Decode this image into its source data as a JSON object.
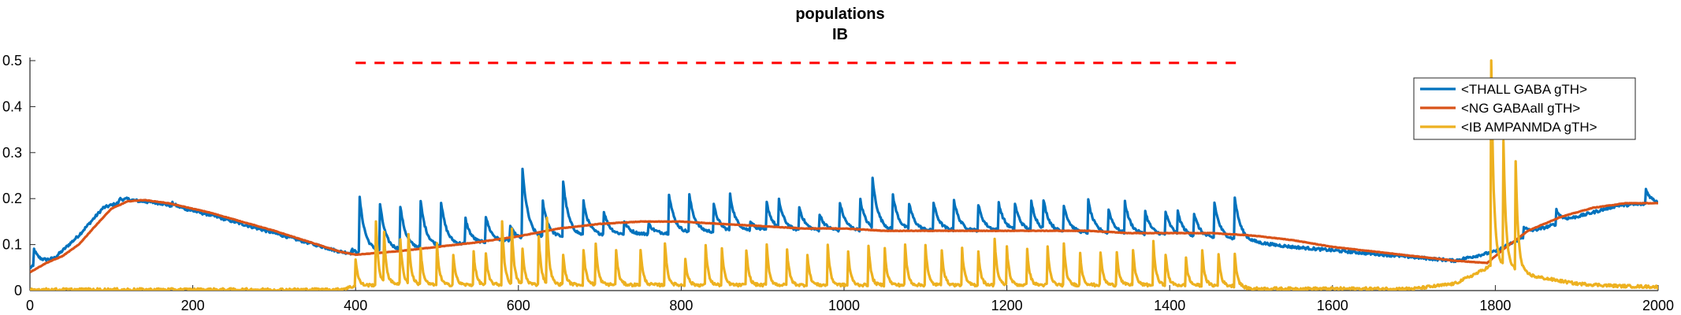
{
  "chart_data": {
    "type": "line",
    "title": [
      "populations",
      "IB"
    ],
    "xlabel": "",
    "ylabel": "",
    "xlim": [
      0,
      2000
    ],
    "ylim": [
      0,
      0.5
    ],
    "xticks": [
      0,
      200,
      400,
      600,
      800,
      1000,
      1200,
      1400,
      1600,
      1800,
      2000
    ],
    "yticks": [
      0,
      0.1,
      0.2,
      0.3,
      0.4,
      0.5
    ],
    "ytick_labels": [
      "0",
      "0.1",
      "0.2",
      "0.3",
      "0.4",
      "0.5"
    ],
    "grid": false,
    "legend_position": "top-right",
    "reference_line": {
      "style": "dashed",
      "color": "#ff0000",
      "y": 0.495,
      "x_start": 400,
      "x_end": 1490
    },
    "series": [
      {
        "name": "<THALL GABA gTH>",
        "color": "#0072bd",
        "baseline": [
          [
            0,
            0.05
          ],
          [
            30,
            0.07
          ],
          [
            60,
            0.12
          ],
          [
            90,
            0.18
          ],
          [
            120,
            0.197
          ],
          [
            160,
            0.19
          ],
          [
            220,
            0.165
          ],
          [
            300,
            0.125
          ],
          [
            380,
            0.085
          ],
          [
            400,
            0.08
          ],
          [
            500,
            0.095
          ],
          [
            600,
            0.11
          ],
          [
            700,
            0.12
          ],
          [
            800,
            0.125
          ],
          [
            900,
            0.13
          ],
          [
            1000,
            0.13
          ],
          [
            1100,
            0.13
          ],
          [
            1200,
            0.13
          ],
          [
            1300,
            0.125
          ],
          [
            1400,
            0.12
          ],
          [
            1480,
            0.11
          ],
          [
            1550,
            0.095
          ],
          [
            1650,
            0.08
          ],
          [
            1750,
            0.065
          ],
          [
            1800,
            0.085
          ],
          [
            1850,
            0.13
          ],
          [
            1900,
            0.16
          ],
          [
            1950,
            0.185
          ],
          [
            2000,
            0.19
          ]
        ],
        "spikes": [
          [
            5,
            0.09
          ],
          [
            55,
            0.1
          ],
          [
            110,
            0.2
          ],
          [
            175,
            0.19
          ],
          [
            215,
            0.16
          ],
          [
            275,
            0.135
          ],
          [
            325,
            0.105
          ],
          [
            395,
            0.09
          ],
          [
            405,
            0.2
          ],
          [
            430,
            0.185
          ],
          [
            455,
            0.18
          ],
          [
            480,
            0.19
          ],
          [
            505,
            0.19
          ],
          [
            535,
            0.155
          ],
          [
            560,
            0.16
          ],
          [
            590,
            0.14
          ],
          [
            605,
            0.26
          ],
          [
            630,
            0.19
          ],
          [
            655,
            0.235
          ],
          [
            680,
            0.19
          ],
          [
            705,
            0.17
          ],
          [
            730,
            0.15
          ],
          [
            760,
            0.145
          ],
          [
            785,
            0.21
          ],
          [
            810,
            0.205
          ],
          [
            840,
            0.185
          ],
          [
            860,
            0.205
          ],
          [
            885,
            0.15
          ],
          [
            905,
            0.19
          ],
          [
            920,
            0.19
          ],
          [
            945,
            0.18
          ],
          [
            970,
            0.165
          ],
          [
            995,
            0.19
          ],
          [
            1020,
            0.195
          ],
          [
            1035,
            0.235
          ],
          [
            1060,
            0.205
          ],
          [
            1080,
            0.185
          ],
          [
            1110,
            0.19
          ],
          [
            1135,
            0.195
          ],
          [
            1165,
            0.185
          ],
          [
            1190,
            0.19
          ],
          [
            1210,
            0.185
          ],
          [
            1230,
            0.19
          ],
          [
            1245,
            0.19
          ],
          [
            1270,
            0.185
          ],
          [
            1300,
            0.195
          ],
          [
            1325,
            0.175
          ],
          [
            1345,
            0.19
          ],
          [
            1370,
            0.17
          ],
          [
            1395,
            0.17
          ],
          [
            1410,
            0.165
          ],
          [
            1430,
            0.165
          ],
          [
            1455,
            0.19
          ],
          [
            1480,
            0.2
          ],
          [
            1835,
            0.14
          ],
          [
            1875,
            0.175
          ],
          [
            1985,
            0.22
          ]
        ]
      },
      {
        "name": "<NG GABAall gTH>",
        "color": "#d95319",
        "points": [
          [
            0,
            0.04
          ],
          [
            20,
            0.06
          ],
          [
            40,
            0.075
          ],
          [
            60,
            0.1
          ],
          [
            80,
            0.14
          ],
          [
            100,
            0.178
          ],
          [
            120,
            0.194
          ],
          [
            140,
            0.197
          ],
          [
            170,
            0.19
          ],
          [
            220,
            0.17
          ],
          [
            300,
            0.13
          ],
          [
            380,
            0.085
          ],
          [
            400,
            0.078
          ],
          [
            450,
            0.085
          ],
          [
            500,
            0.095
          ],
          [
            550,
            0.105
          ],
          [
            600,
            0.118
          ],
          [
            650,
            0.135
          ],
          [
            700,
            0.145
          ],
          [
            750,
            0.15
          ],
          [
            800,
            0.15
          ],
          [
            850,
            0.145
          ],
          [
            900,
            0.14
          ],
          [
            950,
            0.135
          ],
          [
            1000,
            0.135
          ],
          [
            1050,
            0.13
          ],
          [
            1100,
            0.13
          ],
          [
            1150,
            0.13
          ],
          [
            1200,
            0.13
          ],
          [
            1250,
            0.13
          ],
          [
            1300,
            0.13
          ],
          [
            1350,
            0.125
          ],
          [
            1400,
            0.125
          ],
          [
            1450,
            0.125
          ],
          [
            1500,
            0.12
          ],
          [
            1550,
            0.11
          ],
          [
            1600,
            0.095
          ],
          [
            1650,
            0.085
          ],
          [
            1700,
            0.075
          ],
          [
            1750,
            0.065
          ],
          [
            1790,
            0.06
          ],
          [
            1810,
            0.09
          ],
          [
            1840,
            0.13
          ],
          [
            1880,
            0.16
          ],
          [
            1920,
            0.18
          ],
          [
            1960,
            0.19
          ],
          [
            2000,
            0.19
          ]
        ]
      },
      {
        "name": "<IB AMPANMDA gTH>",
        "color": "#edb120",
        "baseline": [
          [
            0,
            0.002
          ],
          [
            380,
            0.002
          ],
          [
            400,
            0.01
          ],
          [
            450,
            0.015
          ],
          [
            500,
            0.012
          ],
          [
            600,
            0.013
          ],
          [
            700,
            0.013
          ],
          [
            800,
            0.012
          ],
          [
            900,
            0.012
          ],
          [
            1000,
            0.012
          ],
          [
            1100,
            0.012
          ],
          [
            1200,
            0.012
          ],
          [
            1300,
            0.012
          ],
          [
            1400,
            0.012
          ],
          [
            1480,
            0.01
          ],
          [
            1500,
            0.004
          ],
          [
            1700,
            0.004
          ],
          [
            1750,
            0.015
          ],
          [
            1780,
            0.04
          ],
          [
            1800,
            0.06
          ],
          [
            1850,
            0.03
          ],
          [
            1900,
            0.015
          ],
          [
            1950,
            0.01
          ],
          [
            2000,
            0.008
          ]
        ],
        "spikes": [
          [
            400,
            0.07
          ],
          [
            425,
            0.15
          ],
          [
            435,
            0.12
          ],
          [
            455,
            0.11
          ],
          [
            465,
            0.12
          ],
          [
            480,
            0.09
          ],
          [
            500,
            0.1
          ],
          [
            520,
            0.08
          ],
          [
            545,
            0.085
          ],
          [
            560,
            0.08
          ],
          [
            580,
            0.15
          ],
          [
            592,
            0.13
          ],
          [
            605,
            0.09
          ],
          [
            625,
            0.12
          ],
          [
            635,
            0.155
          ],
          [
            655,
            0.08
          ],
          [
            680,
            0.09
          ],
          [
            695,
            0.1
          ],
          [
            720,
            0.09
          ],
          [
            750,
            0.09
          ],
          [
            780,
            0.105
          ],
          [
            805,
            0.07
          ],
          [
            830,
            0.1
          ],
          [
            850,
            0.09
          ],
          [
            880,
            0.09
          ],
          [
            905,
            0.1
          ],
          [
            930,
            0.09
          ],
          [
            955,
            0.08
          ],
          [
            980,
            0.1
          ],
          [
            1005,
            0.085
          ],
          [
            1030,
            0.1
          ],
          [
            1050,
            0.09
          ],
          [
            1075,
            0.1
          ],
          [
            1100,
            0.1
          ],
          [
            1120,
            0.09
          ],
          [
            1145,
            0.09
          ],
          [
            1165,
            0.085
          ],
          [
            1185,
            0.115
          ],
          [
            1200,
            0.095
          ],
          [
            1225,
            0.09
          ],
          [
            1250,
            0.095
          ],
          [
            1270,
            0.1
          ],
          [
            1290,
            0.08
          ],
          [
            1315,
            0.085
          ],
          [
            1335,
            0.085
          ],
          [
            1355,
            0.09
          ],
          [
            1380,
            0.105
          ],
          [
            1395,
            0.08
          ],
          [
            1420,
            0.07
          ],
          [
            1440,
            0.085
          ],
          [
            1460,
            0.08
          ],
          [
            1480,
            0.08
          ],
          [
            1795,
            0.5
          ],
          [
            1810,
            0.32
          ],
          [
            1825,
            0.28
          ]
        ]
      }
    ]
  }
}
